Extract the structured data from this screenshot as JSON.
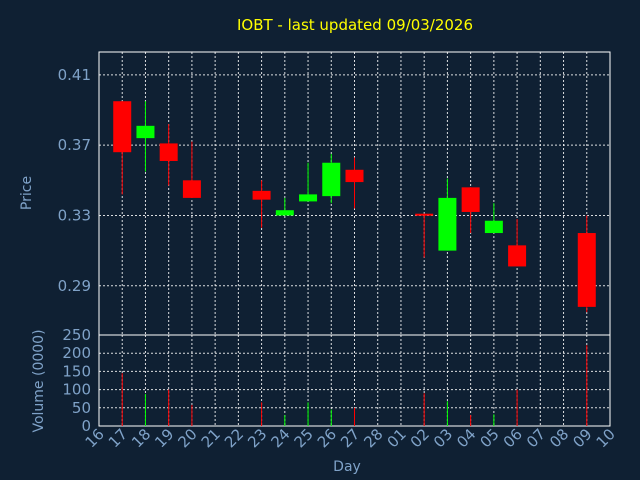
{
  "chart_data": {
    "title": "IOBT - last updated 09/03/2026",
    "type": "candlestick",
    "xlabel": "Day",
    "price_axis": {
      "label": "Price",
      "ticks": [
        0.29,
        0.33,
        0.37,
        0.41
      ],
      "tick_labels": [
        "0.29",
        "0.33",
        "0.37",
        "0.41"
      ],
      "range": [
        0.262,
        0.423
      ]
    },
    "volume_axis": {
      "label": "Volume (0000)",
      "ticks": [
        0,
        50,
        100,
        150,
        200,
        250
      ],
      "tick_labels": [
        "0",
        "50",
        "100",
        "150",
        "200",
        "250"
      ],
      "range": [
        0,
        250
      ]
    },
    "days": [
      "16",
      "17",
      "18",
      "19",
      "20",
      "21",
      "22",
      "23",
      "24",
      "25",
      "26",
      "27",
      "28",
      "01",
      "02",
      "03",
      "04",
      "05",
      "06",
      "07",
      "08",
      "09",
      "10"
    ],
    "candles": [
      {
        "day": "17",
        "open": 0.395,
        "close": 0.366,
        "high": 0.395,
        "low": 0.342,
        "volume": 145
      },
      {
        "day": "18",
        "open": 0.374,
        "close": 0.381,
        "high": 0.395,
        "low": 0.355,
        "volume": 88
      },
      {
        "day": "19",
        "open": 0.371,
        "close": 0.361,
        "high": 0.382,
        "low": 0.347,
        "volume": 100
      },
      {
        "day": "20",
        "open": 0.35,
        "close": 0.34,
        "high": 0.372,
        "low": 0.34,
        "volume": 58
      },
      {
        "day": "23",
        "open": 0.344,
        "close": 0.339,
        "high": 0.35,
        "low": 0.323,
        "volume": 65
      },
      {
        "day": "24",
        "open": 0.33,
        "close": 0.333,
        "high": 0.34,
        "low": 0.33,
        "volume": 30
      },
      {
        "day": "25",
        "open": 0.338,
        "close": 0.342,
        "high": 0.36,
        "low": 0.338,
        "volume": 65
      },
      {
        "day": "26",
        "open": 0.341,
        "close": 0.36,
        "high": 0.365,
        "low": 0.337,
        "volume": 45
      },
      {
        "day": "27",
        "open": 0.356,
        "close": 0.349,
        "high": 0.363,
        "low": 0.334,
        "volume": 50
      },
      {
        "day": "02",
        "open": 0.331,
        "close": 0.33,
        "high": 0.331,
        "low": 0.306,
        "volume": 90
      },
      {
        "day": "03",
        "open": 0.31,
        "close": 0.34,
        "high": 0.351,
        "low": 0.31,
        "volume": 68
      },
      {
        "day": "04",
        "open": 0.346,
        "close": 0.332,
        "high": 0.346,
        "low": 0.32,
        "volume": 30
      },
      {
        "day": "05",
        "open": 0.32,
        "close": 0.327,
        "high": 0.337,
        "low": 0.32,
        "volume": 32
      },
      {
        "day": "06",
        "open": 0.313,
        "close": 0.301,
        "high": 0.328,
        "low": 0.301,
        "volume": 100
      },
      {
        "day": "09",
        "open": 0.32,
        "close": 0.278,
        "high": 0.33,
        "low": 0.275,
        "volume": 222
      }
    ],
    "grid": true,
    "colors": {
      "background": "#0f2033",
      "up": "#00ff00",
      "down": "#ff0000",
      "title": "#ffff00",
      "axis_text": "#7fa2c8",
      "frame": "#ffffff"
    }
  }
}
